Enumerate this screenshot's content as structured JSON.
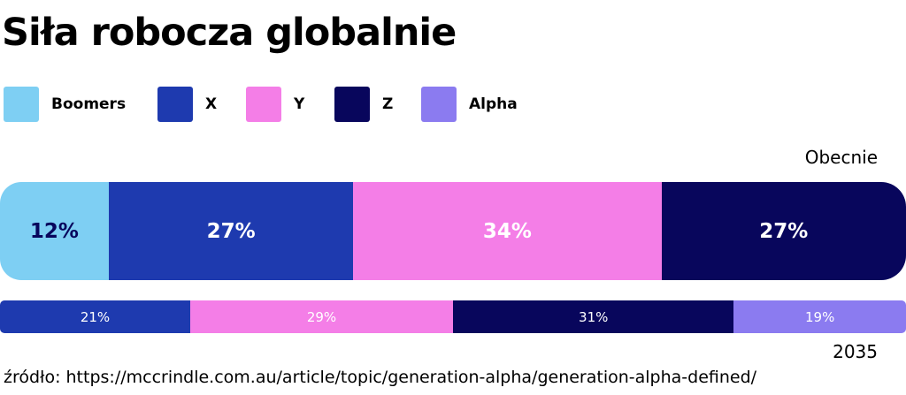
{
  "title": "Siła robocza globalnie",
  "source": "źródło: https://mccrindle.com.au/article/topic/generation-alpha/generation-alpha-defined/",
  "legend": [
    {
      "label": "Boomers",
      "color": "#7ecff3"
    },
    {
      "label": "X",
      "color": "#1e3aaf"
    },
    {
      "label": "Y",
      "color": "#f47ee7"
    },
    {
      "label": "Z",
      "color": "#08065c"
    },
    {
      "label": "Alpha",
      "color": "#8b7bf0"
    }
  ],
  "chart_data": {
    "type": "bar",
    "orientation": "horizontal",
    "stacked": true,
    "title": "Siła robocza globalnie",
    "bars": [
      {
        "name": "Obecnie",
        "segments": [
          {
            "series": "Boomers",
            "value": 12,
            "label": "12%",
            "color": "#7ecff3",
            "text_color": "#08065c"
          },
          {
            "series": "X",
            "value": 27,
            "label": "27%",
            "color": "#1e3aaf",
            "text_color": "#ffffff"
          },
          {
            "series": "Y",
            "value": 34,
            "label": "34%",
            "color": "#f47ee7",
            "text_color": "#ffffff"
          },
          {
            "series": "Z",
            "value": 27,
            "label": "27%",
            "color": "#08065c",
            "text_color": "#ffffff"
          }
        ]
      },
      {
        "name": "2035",
        "segments": [
          {
            "series": "X",
            "value": 21,
            "label": "21%",
            "color": "#1e3aaf",
            "text_color": "#ffffff"
          },
          {
            "series": "Y",
            "value": 29,
            "label": "29%",
            "color": "#f47ee7",
            "text_color": "#ffffff"
          },
          {
            "series": "Z",
            "value": 31,
            "label": "31%",
            "color": "#08065c",
            "text_color": "#ffffff"
          },
          {
            "series": "Alpha",
            "value": 19,
            "label": "19%",
            "color": "#8b7bf0",
            "text_color": "#ffffff"
          }
        ]
      }
    ],
    "legend_position": "top-left"
  }
}
